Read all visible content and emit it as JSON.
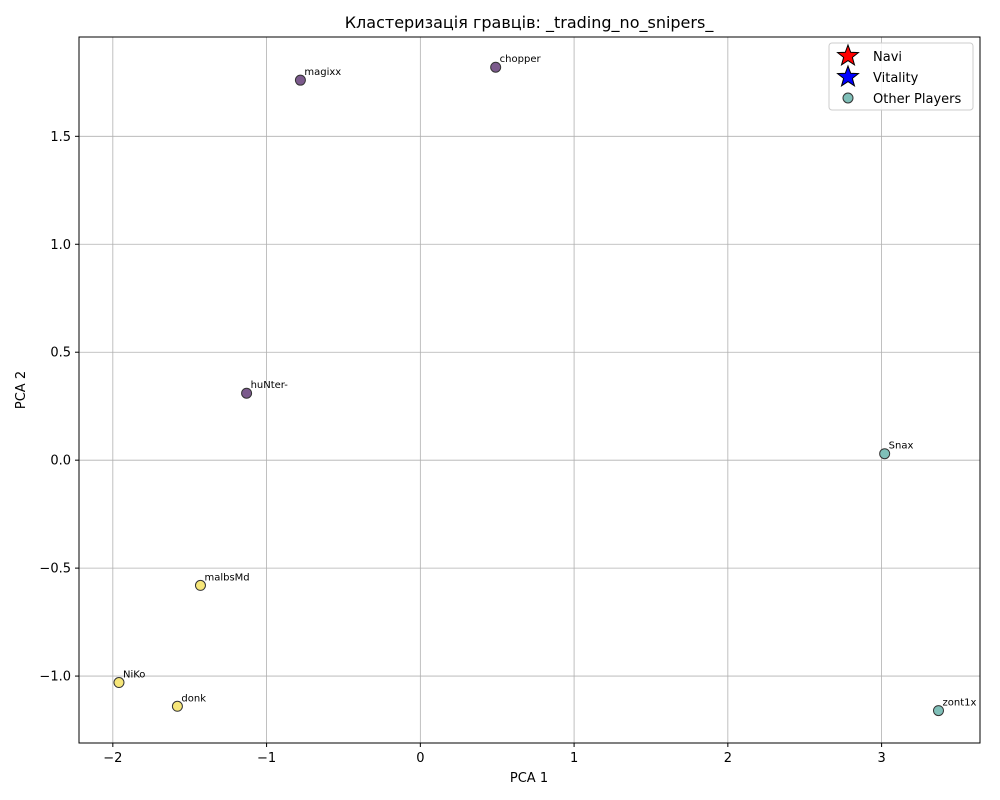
{
  "chart_data": {
    "type": "scatter",
    "title": "Кластеризація гравців: _trading_no_snipers_",
    "xlabel": "PCA 1",
    "ylabel": "PCA 2",
    "xlim": [
      -2.22,
      3.64
    ],
    "ylim": [
      -1.31,
      1.96
    ],
    "xticks": [
      -2,
      -1,
      0,
      1,
      2,
      3
    ],
    "yticks": [
      -1.0,
      -0.5,
      0.0,
      0.5,
      1.0,
      1.5
    ],
    "xtick_labels": [
      "−2",
      "−1",
      "0",
      "1",
      "2",
      "3"
    ],
    "ytick_labels": [
      "−1.0",
      "−0.5",
      "0.0",
      "0.5",
      "1.0",
      "1.5"
    ],
    "grid": true,
    "legend_position": "top-right",
    "legend": [
      {
        "label": "Navi",
        "marker": "star",
        "color": "#ff0000"
      },
      {
        "label": "Vitality",
        "marker": "star",
        "color": "#0000ff"
      },
      {
        "label": "Other Players",
        "marker": "circle",
        "color": "#7fbfb8"
      }
    ],
    "cluster_colors": {
      "0": "#7b5a8c",
      "1": "#7fbfb8",
      "2": "#f6e679"
    },
    "points": [
      {
        "name": "magixx",
        "x": -0.78,
        "y": 1.76,
        "cluster": "0"
      },
      {
        "name": "chopper",
        "x": 0.49,
        "y": 1.82,
        "cluster": "0"
      },
      {
        "name": "huNter-",
        "x": -1.13,
        "y": 0.31,
        "cluster": "0"
      },
      {
        "name": "Snax",
        "x": 3.02,
        "y": 0.03,
        "cluster": "1"
      },
      {
        "name": "zont1x",
        "x": 3.37,
        "y": -1.16,
        "cluster": "1"
      },
      {
        "name": "malbsMd",
        "x": -1.43,
        "y": -0.58,
        "cluster": "2"
      },
      {
        "name": "NiKo",
        "x": -1.96,
        "y": -1.03,
        "cluster": "2"
      },
      {
        "name": "donk",
        "x": -1.58,
        "y": -1.14,
        "cluster": "2"
      }
    ]
  }
}
